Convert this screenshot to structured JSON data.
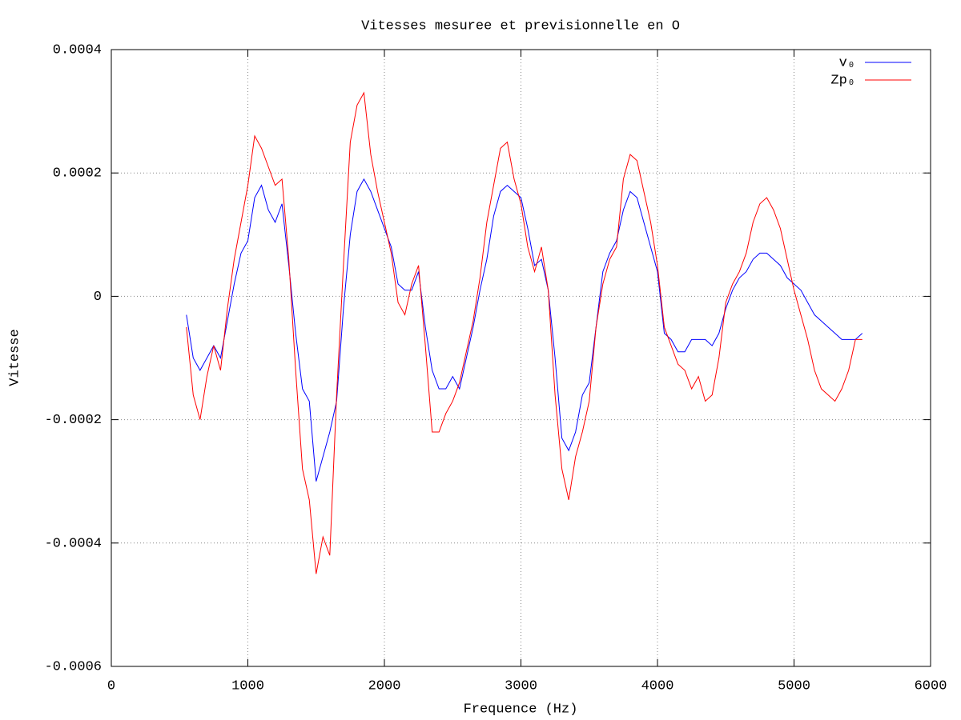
{
  "chart_data": {
    "type": "line",
    "title": "Vitesses mesuree et previsionnelle en O",
    "x_label": "Frequence (Hz)",
    "y_label": "Vitesse",
    "xlim": [
      0,
      6000
    ],
    "xticks": [
      0,
      1000,
      2000,
      3000,
      4000,
      5000,
      6000
    ],
    "ylim": [
      -0.0006,
      0.0004
    ],
    "yticks": [
      -0.0006,
      -0.0004,
      -0.0002,
      0,
      0.0002,
      0.0004
    ],
    "grid": true,
    "legend": "top-right",
    "x": [
      550,
      600,
      650,
      700,
      750,
      800,
      850,
      900,
      950,
      1000,
      1050,
      1100,
      1150,
      1200,
      1250,
      1300,
      1350,
      1400,
      1450,
      1500,
      1550,
      1600,
      1650,
      1700,
      1750,
      1800,
      1850,
      1900,
      1950,
      2000,
      2050,
      2100,
      2150,
      2200,
      2250,
      2300,
      2350,
      2400,
      2450,
      2500,
      2550,
      2600,
      2650,
      2700,
      2750,
      2800,
      2850,
      2900,
      2950,
      3000,
      3050,
      3100,
      3150,
      3200,
      3250,
      3300,
      3350,
      3400,
      3450,
      3500,
      3550,
      3600,
      3650,
      3700,
      3750,
      3800,
      3850,
      3900,
      3950,
      4000,
      4050,
      4100,
      4150,
      4200,
      4250,
      4300,
      4350,
      4400,
      4450,
      4500,
      4550,
      4600,
      4650,
      4700,
      4750,
      4800,
      4850,
      4900,
      4950,
      5000,
      5050,
      5100,
      5150,
      5200,
      5250,
      5300,
      5350,
      5400,
      5450,
      5500
    ],
    "series": [
      {
        "name": "v₀",
        "color": "#0000ff",
        "values": [
          -3e-05,
          -0.0001,
          -0.00012,
          -0.0001,
          -8e-05,
          -0.0001,
          -4e-05,
          2e-05,
          7e-05,
          9e-05,
          0.00016,
          0.00018,
          0.00014,
          0.00012,
          0.00015,
          5e-05,
          -6e-05,
          -0.00015,
          -0.00017,
          -0.0003,
          -0.00026,
          -0.00022,
          -0.00017,
          -2e-05,
          0.0001,
          0.00017,
          0.00019,
          0.00017,
          0.00014,
          0.00011,
          8e-05,
          2e-05,
          1e-05,
          1e-05,
          4e-05,
          -5e-05,
          -0.00012,
          -0.00015,
          -0.00015,
          -0.00013,
          -0.00015,
          -0.0001,
          -5e-05,
          1e-05,
          6e-05,
          0.00013,
          0.00017,
          0.00018,
          0.00017,
          0.00016,
          0.00011,
          5e-05,
          6e-05,
          1e-05,
          -0.0001,
          -0.00023,
          -0.00025,
          -0.00022,
          -0.00016,
          -0.00014,
          -5e-05,
          4e-05,
          7e-05,
          9e-05,
          0.00014,
          0.00017,
          0.00016,
          0.00012,
          8e-05,
          4e-05,
          -6e-05,
          -7e-05,
          -9e-05,
          -9e-05,
          -7e-05,
          -7e-05,
          -7e-05,
          -8e-05,
          -6e-05,
          -2e-05,
          1e-05,
          3e-05,
          4e-05,
          6e-05,
          7e-05,
          7e-05,
          6e-05,
          5e-05,
          3e-05,
          2e-05,
          1e-05,
          -1e-05,
          -3e-05,
          -4e-05,
          -5e-05,
          -6e-05,
          -7e-05,
          -7e-05,
          -7e-05,
          -6e-05
        ]
      },
      {
        "name": "Zp₀",
        "color": "#ff0000",
        "values": [
          -5e-05,
          -0.00016,
          -0.0002,
          -0.00013,
          -8e-05,
          -0.00012,
          -2e-05,
          6e-05,
          0.00012,
          0.00018,
          0.00026,
          0.00024,
          0.00021,
          0.00018,
          0.00019,
          6e-05,
          -0.00012,
          -0.00028,
          -0.00033,
          -0.00045,
          -0.00039,
          -0.00042,
          -0.00016,
          5e-05,
          0.00025,
          0.00031,
          0.00033,
          0.00023,
          0.00017,
          0.00012,
          7e-05,
          -1e-05,
          -3e-05,
          2e-05,
          5e-05,
          -8e-05,
          -0.00022,
          -0.00022,
          -0.00019,
          -0.00017,
          -0.00014,
          -9e-05,
          -4e-05,
          3e-05,
          0.00012,
          0.00018,
          0.00024,
          0.00025,
          0.00019,
          0.00015,
          8e-05,
          4e-05,
          8e-05,
          1e-05,
          -0.00016,
          -0.00028,
          -0.00033,
          -0.00026,
          -0.00022,
          -0.00017,
          -5e-05,
          2e-05,
          6e-05,
          8e-05,
          0.00019,
          0.00023,
          0.00022,
          0.00017,
          0.00012,
          5e-05,
          -5e-05,
          -8e-05,
          -0.00011,
          -0.00012,
          -0.00015,
          -0.00013,
          -0.00017,
          -0.00016,
          -0.0001,
          -1e-05,
          2e-05,
          4e-05,
          7e-05,
          0.00012,
          0.00015,
          0.00016,
          0.00014,
          0.00011,
          6e-05,
          1e-05,
          -3e-05,
          -7e-05,
          -0.00012,
          -0.00015,
          -0.00016,
          -0.00017,
          -0.00015,
          -0.00012,
          -7e-05,
          -7e-05
        ]
      }
    ]
  }
}
